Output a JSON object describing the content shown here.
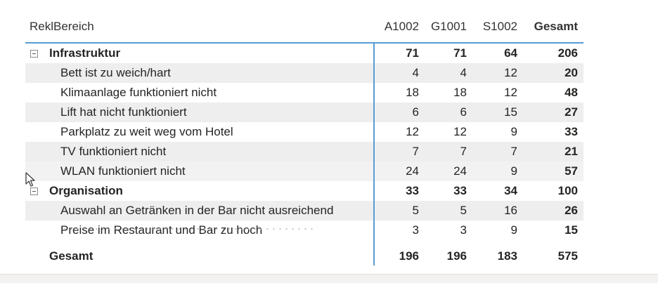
{
  "matrix": {
    "header": {
      "row_label": "ReklBereich",
      "columns": [
        "A1002",
        "G1001",
        "S1002",
        "Gesamt"
      ]
    },
    "groups": [
      {
        "name": "Infrastruktur",
        "values": [
          "71",
          "71",
          "64",
          "206"
        ],
        "items": [
          {
            "label": "Bett ist zu weich/hart",
            "values": [
              "4",
              "4",
              "12",
              "20"
            ]
          },
          {
            "label": "Klimaanlage funktioniert nicht",
            "values": [
              "18",
              "18",
              "12",
              "48"
            ]
          },
          {
            "label": "Lift hat nicht funktioniert",
            "values": [
              "6",
              "6",
              "15",
              "27"
            ]
          },
          {
            "label": "Parkplatz zu weit weg vom Hotel",
            "values": [
              "12",
              "12",
              "9",
              "33"
            ]
          },
          {
            "label": "TV funktioniert nicht",
            "values": [
              "7",
              "7",
              "7",
              "21"
            ]
          },
          {
            "label": "WLAN funktioniert nicht",
            "values": [
              "24",
              "24",
              "9",
              "57"
            ]
          }
        ]
      },
      {
        "name": "Organisation",
        "values": [
          "33",
          "33",
          "34",
          "100"
        ],
        "items": [
          {
            "label": "Auswahl an Getränken in der Bar nicht ausreichend",
            "values": [
              "5",
              "5",
              "16",
              "26"
            ]
          },
          {
            "label": "Preise im Restaurant und Bar zu hoch",
            "values": [
              "3",
              "3",
              "9",
              "15"
            ]
          }
        ]
      }
    ],
    "total": {
      "label": "Gesamt",
      "values": [
        "196",
        "196",
        "183",
        "575"
      ]
    }
  },
  "icons": {
    "collapse": "minus-box-icon",
    "cursor": "mouse-pointer-icon"
  },
  "colors": {
    "accent": "#5b9bd5",
    "shade": "#eeeeee",
    "text": "#252423"
  }
}
